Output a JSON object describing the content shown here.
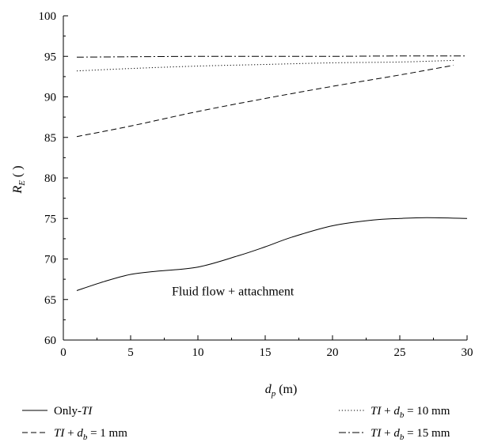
{
  "chart_data": {
    "type": "line",
    "title": "",
    "xlabel": "d_p (m)",
    "xlabel_parts": {
      "main": "d",
      "sub": "p",
      "unit": " (m)"
    },
    "ylabel": "R_E ( )",
    "ylabel_parts": {
      "main": "R",
      "sub": "E",
      "unit": " (  )"
    },
    "xlim": [
      0,
      30
    ],
    "ylim": [
      60,
      100
    ],
    "xticks": [
      0,
      5,
      10,
      15,
      20,
      25,
      30
    ],
    "yticks": [
      60,
      65,
      70,
      75,
      80,
      85,
      90,
      95,
      100
    ],
    "grid": false,
    "legend_position": "bottom",
    "annotation": {
      "text": "Fluid flow + attachment",
      "x": 8,
      "y": 66
    },
    "series": [
      {
        "name": "Only-TI",
        "legend": {
          "pre": "Only-",
          "it1": "TI",
          "mid": "",
          "it2": "",
          "sub": "",
          "post": ""
        },
        "style": "solid",
        "x": [
          1,
          3,
          5,
          7,
          10,
          13,
          15,
          17,
          20,
          23,
          25,
          27,
          30
        ],
        "y": [
          66.1,
          67.2,
          68.1,
          68.5,
          69.0,
          70.4,
          71.5,
          72.7,
          74.1,
          74.8,
          75.0,
          75.1,
          75.0
        ]
      },
      {
        "name": "TI + d_b = 1 mm",
        "legend": {
          "pre": "",
          "it1": "TI",
          "mid": " + ",
          "it2": "d",
          "sub": "b",
          "post": " = 1 mm"
        },
        "style": "dashed",
        "x": [
          1,
          5,
          10,
          15,
          20,
          25,
          29
        ],
        "y": [
          85.1,
          86.4,
          88.2,
          89.8,
          91.3,
          92.7,
          93.9
        ]
      },
      {
        "name": "TI + d_b = 10 mm",
        "legend": {
          "pre": "",
          "it1": "TI",
          "mid": " + ",
          "it2": "d",
          "sub": "b",
          "post": " = 10 mm"
        },
        "style": "dotted",
        "x": [
          1,
          5,
          10,
          15,
          20,
          25,
          29
        ],
        "y": [
          93.2,
          93.5,
          93.8,
          94.0,
          94.2,
          94.3,
          94.5
        ]
      },
      {
        "name": "TI + d_b = 15 mm",
        "legend": {
          "pre": "",
          "it1": "TI",
          "mid": " + ",
          "it2": "d",
          "sub": "b",
          "post": " = 15 mm"
        },
        "style": "dashdot",
        "x": [
          1,
          5,
          10,
          15,
          20,
          25,
          30
        ],
        "y": [
          94.9,
          94.95,
          95.0,
          95.0,
          95.0,
          95.05,
          95.05
        ]
      }
    ]
  }
}
